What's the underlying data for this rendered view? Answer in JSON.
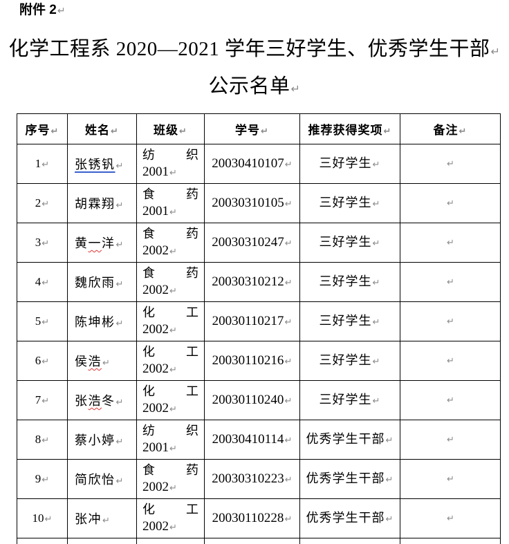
{
  "page": {
    "attachment_label": "附件 2",
    "pilcrow": "↵",
    "title": {
      "line1": "化学工程系 2020—2021 学年三好学生、优秀学生干部",
      "line2": "公示名单"
    }
  },
  "colors": {
    "pilcrow_gray": "#8a8a8a",
    "blue_underline": "#3a5fcd",
    "red_wavy": "#e03232",
    "table_border": "#000000"
  },
  "table": {
    "headers": [
      "序号",
      "姓名",
      "班级",
      "学号",
      "推荐获得奖项",
      "备注"
    ],
    "rows": [
      {
        "no": "1",
        "name": "张锈钒",
        "mark": {
          "type": "blue-underline",
          "start": 0,
          "end": 3
        },
        "class_chars": "纺织",
        "class_year": "2001",
        "student_id": "20030410107",
        "award": "三好学生"
      },
      {
        "no": "2",
        "name": "胡霖翔",
        "class_chars": "食药",
        "class_year": "2001",
        "student_id": "20030310105",
        "award": "三好学生"
      },
      {
        "no": "3",
        "name": "黄一洋",
        "mark": {
          "type": "red-wavy",
          "start": 1,
          "end": 2
        },
        "class_chars": "食药",
        "class_year": "2002",
        "student_id": "20030310247",
        "award": "三好学生"
      },
      {
        "no": "4",
        "name": "魏欣雨",
        "class_chars": "食药",
        "class_year": "2002",
        "student_id": "20030310212",
        "award": "三好学生"
      },
      {
        "no": "5",
        "name": "陈坤彬",
        "class_chars": "化工",
        "class_year": "2002",
        "student_id": "20030110217",
        "award": "三好学生"
      },
      {
        "no": "6",
        "name": "侯浩",
        "mark": {
          "type": "red-wavy",
          "start": 1,
          "end": 2
        },
        "class_chars": "化工",
        "class_year": "2002",
        "student_id": "20030110216",
        "award": "三好学生"
      },
      {
        "no": "7",
        "name": "张浩冬",
        "mark": {
          "type": "red-wavy",
          "start": 1,
          "end": 2
        },
        "class_chars": "化工",
        "class_year": "2002",
        "student_id": "20030110240",
        "award": "三好学生"
      },
      {
        "no": "8",
        "name": "蔡小婷",
        "class_chars": "纺织",
        "class_year": "2001",
        "student_id": "20030410114",
        "award": "优秀学生干部"
      },
      {
        "no": "9",
        "name": "简欣怡",
        "class_chars": "食药",
        "class_year": "2002",
        "student_id": "20030310223",
        "award": "优秀学生干部"
      },
      {
        "no": "10",
        "name": "张冲",
        "class_chars": "化工",
        "class_year": "2002",
        "student_id": "20030110228",
        "award": "优秀学生干部"
      }
    ]
  }
}
